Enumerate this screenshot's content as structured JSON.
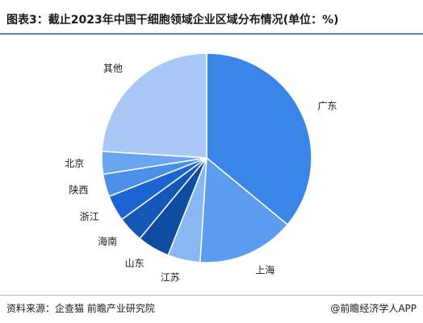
{
  "title": "图表3：截止2023年中国干细胞领域企业区域分布情况(单位：%)",
  "footer": {
    "source": "资料来源：企查猫 前瞻产业研究院",
    "brand": "@前瞻经济学人APP"
  },
  "chart_data": {
    "type": "pie",
    "unit": "%",
    "start": "12 o'clock",
    "direction": "clockwise",
    "legend": "none",
    "categories": [
      "广东",
      "上海",
      "江苏",
      "山东",
      "海南",
      "浙江",
      "陕西",
      "北京",
      "其他"
    ],
    "values": [
      36,
      15,
      5,
      5,
      4,
      4,
      3.5,
      3.5,
      24
    ],
    "colors": [
      "#3a86e8",
      "#5b9cee",
      "#88b7f2",
      "#0f4da3",
      "#1557b7",
      "#1b64d4",
      "#4a8fe8",
      "#6aa6f0",
      "#a9c8f5"
    ]
  }
}
